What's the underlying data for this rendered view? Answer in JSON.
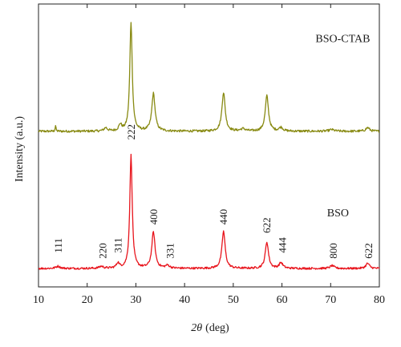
{
  "chart_data": {
    "type": "line",
    "title": "",
    "xlabel": "2θ (deg)",
    "xlabel_parts": {
      "symbol": "2θ",
      "unit": "(deg)"
    },
    "ylabel": "Intensity (a.u.)",
    "xlim": [
      10,
      80
    ],
    "ylim": [
      0,
      1
    ],
    "x_ticks": [
      10,
      20,
      30,
      40,
      50,
      60,
      70,
      80
    ],
    "y_ticks_labeled": false,
    "grid": false,
    "legend": "none",
    "series": [
      {
        "name": "BSO-CTAB",
        "color": "#888a12",
        "baseline": 0.55,
        "noise": 0.004,
        "peaks": [
          [
            13.5,
            0.02,
            0.1
          ],
          [
            23.8,
            0.012,
            0.4
          ],
          [
            26.8,
            0.022,
            0.35
          ],
          [
            29.0,
            0.385,
            0.3
          ],
          [
            33.6,
            0.133,
            0.4
          ],
          [
            48.0,
            0.137,
            0.4
          ],
          [
            52.0,
            0.008,
            0.6
          ],
          [
            56.9,
            0.125,
            0.4
          ],
          [
            59.8,
            0.013,
            0.45
          ],
          [
            70.2,
            0.006,
            0.6
          ],
          [
            77.6,
            0.013,
            0.45
          ]
        ]
      },
      {
        "name": "BSO",
        "color": "#e8141c",
        "baseline": 0.065,
        "noise": 0.0035,
        "peaks": [
          [
            14.0,
            0.008,
            0.5
          ],
          [
            22.9,
            0.007,
            0.5
          ],
          [
            26.3,
            0.018,
            0.35
          ],
          [
            29.0,
            0.4,
            0.3
          ],
          [
            33.6,
            0.128,
            0.4
          ],
          [
            36.5,
            0.01,
            0.5
          ],
          [
            48.0,
            0.131,
            0.4
          ],
          [
            56.9,
            0.093,
            0.4
          ],
          [
            59.8,
            0.02,
            0.45
          ],
          [
            70.3,
            0.01,
            0.5
          ],
          [
            77.6,
            0.018,
            0.45
          ]
        ]
      }
    ],
    "annotations": [
      {
        "text": "111",
        "x": 14.0,
        "y": 0.12
      },
      {
        "text": "220",
        "x": 23.2,
        "y": 0.1
      },
      {
        "text": "311",
        "x": 26.3,
        "y": 0.12
      },
      {
        "text": "222",
        "x": 29.0,
        "y": 0.52
      },
      {
        "text": "400",
        "x": 33.6,
        "y": 0.22
      },
      {
        "text": "331",
        "x": 37.0,
        "y": 0.1
      },
      {
        "text": "440",
        "x": 48.0,
        "y": 0.22
      },
      {
        "text": "622",
        "x": 56.9,
        "y": 0.19
      },
      {
        "text": "444",
        "x": 60.1,
        "y": 0.12
      },
      {
        "text": "800",
        "x": 70.5,
        "y": 0.1
      },
      {
        "text": "622",
        "x": 77.8,
        "y": 0.1
      }
    ],
    "series_labels": [
      {
        "text": "BSO-CTAB",
        "x": 72.5,
        "y": 0.865
      },
      {
        "text": "BSO",
        "x": 71.5,
        "y": 0.25
      }
    ]
  }
}
